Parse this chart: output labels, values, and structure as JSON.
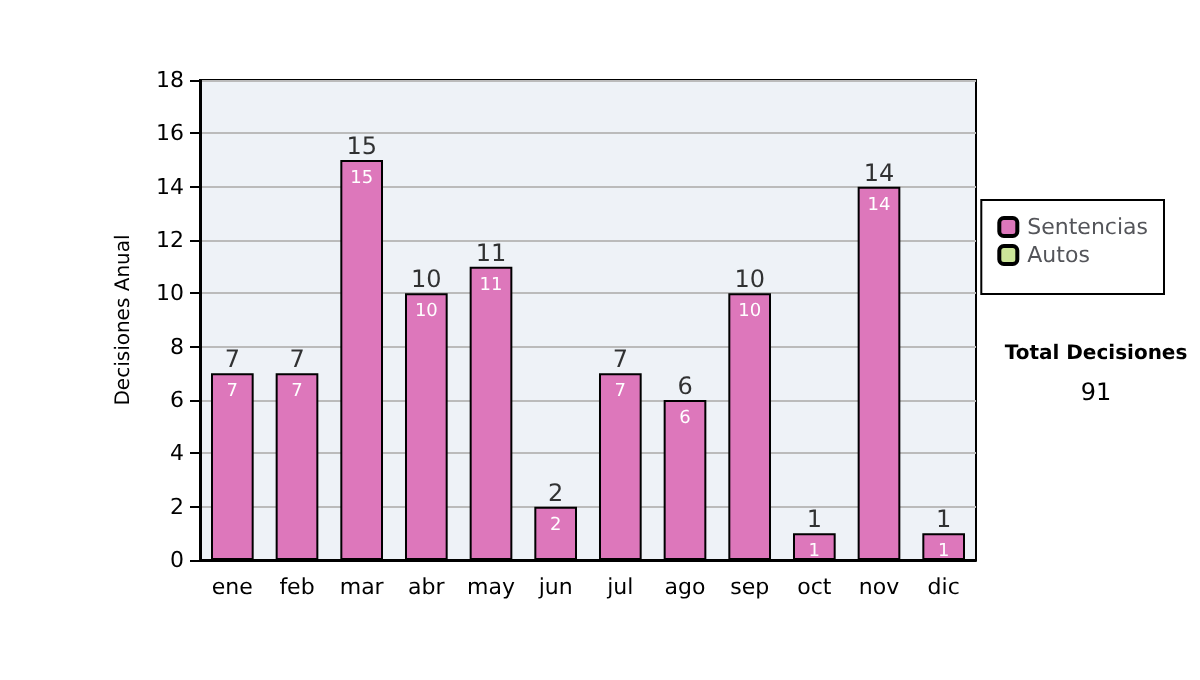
{
  "chart_data": {
    "type": "bar",
    "ylabel": "Decisiones Anual",
    "categories": [
      "ene",
      "feb",
      "mar",
      "abr",
      "may",
      "jun",
      "jul",
      "ago",
      "sep",
      "oct",
      "nov",
      "dic"
    ],
    "series": [
      {
        "name": "Sentencias",
        "color": "#dd77bb",
        "values": [
          7,
          7,
          15,
          10,
          11,
          2,
          7,
          6,
          10,
          1,
          14,
          1
        ],
        "value_labels": [
          "7",
          "7",
          "15",
          "10",
          "11",
          "2",
          "7",
          "6",
          "10",
          "1",
          "14",
          "1"
        ]
      },
      {
        "name": "Autos",
        "color": "#cce699",
        "values": [
          0,
          0,
          0,
          0,
          0,
          0,
          0,
          0,
          0,
          0,
          0,
          0
        ]
      }
    ],
    "stacked": true,
    "totals": [
      "7",
      "7",
      "15",
      "10",
      "11",
      "2",
      "7",
      "6",
      "10",
      "1",
      "14",
      "1"
    ],
    "ylim": [
      0,
      18
    ],
    "yticks": [
      0,
      2,
      4,
      6,
      8,
      10,
      12,
      14,
      16,
      18
    ],
    "grid": "y",
    "legend": "right",
    "annotations": [
      "Total Decisiones",
      "91"
    ]
  }
}
